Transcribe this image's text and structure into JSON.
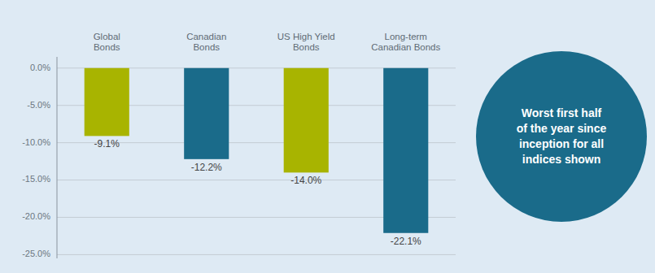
{
  "chart_data": {
    "type": "bar",
    "categories": [
      "Global\nBonds",
      "Canadian\nBonds",
      "US High Yield\nBonds",
      "Long-term\nCanadian Bonds"
    ],
    "values": [
      -9.1,
      -12.2,
      -14.0,
      -22.1
    ],
    "value_labels": [
      "-9.1%",
      "-12.2%",
      "-14.0%",
      "-22.1%"
    ],
    "data_labels": true,
    "colors": [
      "#a8b400",
      "#1a6b8a",
      "#a8b400",
      "#1a6b8a"
    ],
    "ylim": [
      -25.5,
      1.5
    ],
    "yticks": [
      {
        "value": 0,
        "label": "0.0%"
      },
      {
        "value": -5,
        "label": "-5.0%"
      },
      {
        "value": -10,
        "label": "-10.0%"
      },
      {
        "value": -15,
        "label": "-15.0%"
      },
      {
        "value": -20,
        "label": "-20.0%"
      },
      {
        "value": -25,
        "label": "-25.0%"
      }
    ],
    "grid": true,
    "tick_labels": "y",
    "annotation": "Worst first half\nof the year since\ninception for all\nindices shown"
  }
}
